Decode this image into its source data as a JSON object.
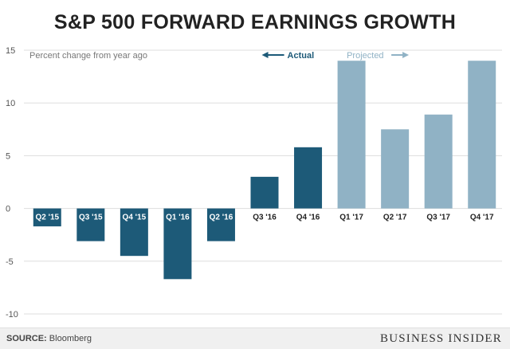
{
  "chart_data": {
    "type": "bar",
    "title": "S&P 500 FORWARD EARNINGS GROWTH",
    "subtitle": "Percent change from year ago",
    "xlabel": "",
    "ylabel": "Percent change from year ago",
    "ylim": [
      -10,
      15
    ],
    "yticks": [
      15,
      10,
      5,
      0,
      -5,
      -10
    ],
    "ytick_labels": [
      "15",
      "10",
      "5",
      "0",
      "-5",
      "-10"
    ],
    "grid": true,
    "categories": [
      "Q2 '15",
      "Q3 '15",
      "Q4 '15",
      "Q1 '16",
      "Q2 '16",
      "Q3 '16",
      "Q4 '16",
      "Q1 '17",
      "Q2 '17",
      "Q3 '17",
      "Q4 '17"
    ],
    "series": [
      {
        "name": "Actual",
        "values": [
          -1.7,
          -3.1,
          -4.5,
          -6.7,
          -3.1,
          3.0,
          5.8,
          null,
          null,
          null,
          null
        ]
      },
      {
        "name": "Projected",
        "values": [
          null,
          null,
          null,
          null,
          null,
          null,
          null,
          14.0,
          7.5,
          8.9,
          14.0
        ]
      }
    ],
    "values": [
      -1.7,
      -3.1,
      -4.5,
      -6.7,
      -3.1,
      3.0,
      5.8,
      14.0,
      7.5,
      8.9,
      14.0
    ],
    "legend": {
      "actual_label": "Actual",
      "projected_label": "Projected",
      "placement": "top"
    }
  },
  "colors": {
    "actual": "#1d5a78",
    "projected": "#90b2c5",
    "grid": "#dddddd",
    "axis_text": "#555555"
  },
  "footer": {
    "source_label": "SOURCE:",
    "source_value": "Bloomberg",
    "brand": "BUSINESS INSIDER"
  }
}
